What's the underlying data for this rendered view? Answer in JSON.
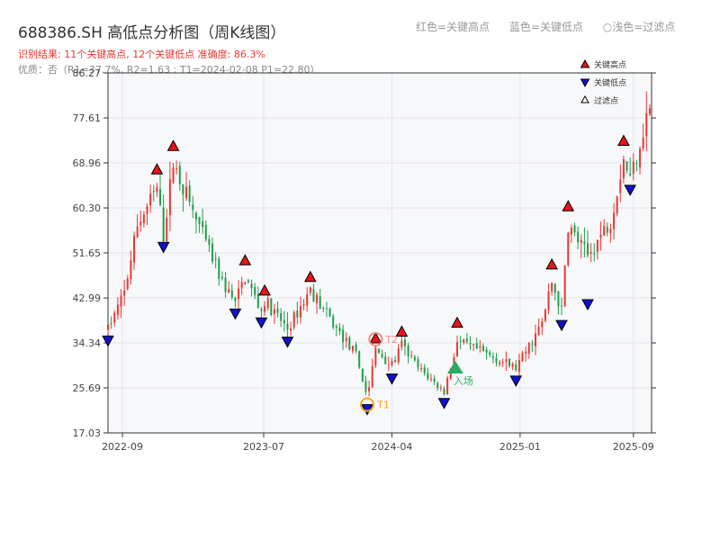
{
  "header": {
    "title": "688386.SH 高低点分析图（周K线图）",
    "subtitle": "识别结果: 11个关键高点, 12个关键低点  准确度: 86.3%",
    "quality": "优质：否（R1=37.7%, R2=1.63 ; T1=2024-02-08 P1=22.80）",
    "legend_text": [
      "红色=关键高点",
      "蓝色=关键低点",
      "○浅色=过滤点"
    ]
  },
  "chart_data": {
    "type": "candlestick",
    "x_axis": {
      "type": "date",
      "range": [
        "2022-08-01",
        "2025-10-10"
      ],
      "ticks": [
        "2022-09",
        "2023-07",
        "2024-04",
        "2025-01",
        "2025-09"
      ]
    },
    "y_axis": {
      "range": [
        17.03,
        86.27
      ],
      "ticks": [
        "17.03",
        "25.69",
        "34.34",
        "42.99",
        "51.65",
        "60.30",
        "68.96",
        "77.61",
        "86.27"
      ]
    },
    "grid": true,
    "legend_placement": "top-right",
    "colors": {
      "up": "#e53935",
      "down": "#1e9e4a",
      "key_high": "#e8141b",
      "key_low": "#1010d0",
      "filtered": "#ffffff",
      "annotation": "#f5a623",
      "entry": "#27ae60"
    },
    "series": [
      {
        "name": "关键高点",
        "marker": "triangle-up",
        "points": [
          {
            "date": "2022-11-14",
            "price": 66.5
          },
          {
            "date": "2022-12-19",
            "price": 71.0
          },
          {
            "date": "2023-05-22",
            "price": 49.0
          },
          {
            "date": "2023-07-03",
            "price": 43.2
          },
          {
            "date": "2023-10-09",
            "price": 45.8
          },
          {
            "date": "2024-02-26",
            "price": 34.0
          },
          {
            "date": "2024-04-22",
            "price": 35.3
          },
          {
            "date": "2024-08-19",
            "price": 37.0
          },
          {
            "date": "2025-03-10",
            "price": 48.2
          },
          {
            "date": "2025-04-14",
            "price": 59.4
          },
          {
            "date": "2025-08-11",
            "price": 72.0
          }
        ]
      },
      {
        "name": "关键低点",
        "marker": "triangle-down",
        "points": [
          {
            "date": "2022-08-01",
            "price": 36.0
          },
          {
            "date": "2022-11-28",
            "price": 54.0
          },
          {
            "date": "2023-05-01",
            "price": 41.2
          },
          {
            "date": "2023-06-26",
            "price": 39.5
          },
          {
            "date": "2023-08-21",
            "price": 35.8
          },
          {
            "date": "2024-02-08",
            "price": 22.8
          },
          {
            "date": "2024-04-01",
            "price": 28.7
          },
          {
            "date": "2024-07-22",
            "price": 24.0
          },
          {
            "date": "2024-12-23",
            "price": 28.3
          },
          {
            "date": "2025-03-31",
            "price": 39.0
          },
          {
            "date": "2025-05-26",
            "price": 43.0
          },
          {
            "date": "2025-08-25",
            "price": 65.0
          }
        ]
      },
      {
        "name": "过滤点",
        "marker": "triangle-up-hollow",
        "points": []
      }
    ],
    "annotations": [
      {
        "label": "T1",
        "date": "2024-02-08",
        "price": 22.8
      },
      {
        "label": "T2",
        "date": "2024-02-26",
        "price": 34.0
      },
      {
        "label": "入场",
        "date": "2024-08-15",
        "price": 29.5
      }
    ],
    "price_path": [
      [
        "2022-08-01",
        37.0
      ],
      [
        "2022-09-05",
        44.0
      ],
      [
        "2022-10-03",
        57.0
      ],
      [
        "2022-11-14",
        64.0
      ],
      [
        "2022-11-28",
        55.0
      ],
      [
        "2022-12-19",
        69.0
      ],
      [
        "2023-02-20",
        55.0
      ],
      [
        "2023-04-03",
        46.0
      ],
      [
        "2023-05-01",
        42.0
      ],
      [
        "2023-05-22",
        47.0
      ],
      [
        "2023-06-26",
        40.5
      ],
      [
        "2023-07-03",
        42.5
      ],
      [
        "2023-08-21",
        37.0
      ],
      [
        "2023-10-09",
        44.5
      ],
      [
        "2023-12-04",
        37.0
      ],
      [
        "2024-01-15",
        32.0
      ],
      [
        "2024-02-08",
        24.0
      ],
      [
        "2024-02-26",
        33.0
      ],
      [
        "2024-04-01",
        30.0
      ],
      [
        "2024-04-22",
        34.0
      ],
      [
        "2024-05-27",
        29.5
      ],
      [
        "2024-07-22",
        25.0
      ],
      [
        "2024-08-19",
        34.5
      ],
      [
        "2024-10-14",
        32.5
      ],
      [
        "2024-12-23",
        29.5
      ],
      [
        "2025-02-17",
        38.0
      ],
      [
        "2025-03-10",
        46.0
      ],
      [
        "2025-03-31",
        40.5
      ],
      [
        "2025-04-14",
        57.0
      ],
      [
        "2025-05-26",
        51.0
      ],
      [
        "2025-07-14",
        58.0
      ],
      [
        "2025-08-11",
        70.0
      ],
      [
        "2025-08-25",
        66.0
      ],
      [
        "2025-10-06",
        80.0
      ]
    ]
  },
  "legend": [
    {
      "label": "关键高点",
      "marker": "triangle-up"
    },
    {
      "label": "关键低点",
      "marker": "triangle-down"
    },
    {
      "label": "过滤点",
      "marker": "triangle-up-hollow"
    }
  ]
}
